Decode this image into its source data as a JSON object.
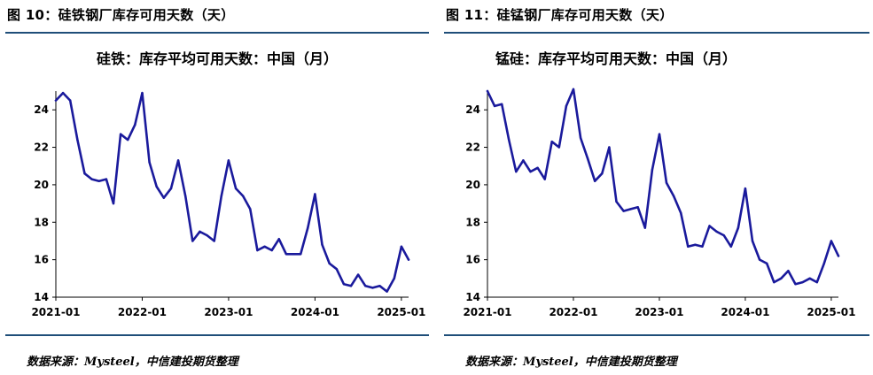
{
  "panels": [
    {
      "figure_title": "图 10：硅铁钢厂库存可用天数（天）",
      "source": "数据来源：Mysteel，中信建投期货整理"
    },
    {
      "figure_title": "图 11：硅锰钢厂库存可用天数（天）",
      "source": "数据来源：Mysteel，中信建投期货整理"
    }
  ],
  "chart_data": [
    {
      "type": "line",
      "title": "硅铁：库存平均可用天数：中国（月）",
      "xlabel": "",
      "ylabel": "",
      "ylim": [
        14,
        25
      ],
      "yticks": [
        14,
        16,
        18,
        20,
        22,
        24
      ],
      "xticks": [
        "2021-01",
        "2022-01",
        "2023-01",
        "2024-01",
        "2025-01"
      ],
      "xrange": [
        "2021-01",
        "2025-02"
      ],
      "grid": false,
      "line_color": "#1a1a9c",
      "series": [
        {
          "x": [
            "2021-01",
            "2021-02",
            "2021-03",
            "2021-04",
            "2021-05",
            "2021-06",
            "2021-07",
            "2021-08",
            "2021-09",
            "2021-10",
            "2021-11",
            "2021-12",
            "2022-01",
            "2022-02",
            "2022-03",
            "2022-04",
            "2022-05",
            "2022-06",
            "2022-07",
            "2022-08",
            "2022-09",
            "2022-10",
            "2022-11",
            "2022-12",
            "2023-01",
            "2023-02",
            "2023-03",
            "2023-04",
            "2023-05",
            "2023-06",
            "2023-07",
            "2023-08",
            "2023-09",
            "2023-10",
            "2023-11",
            "2023-12",
            "2024-01",
            "2024-02",
            "2024-03",
            "2024-04",
            "2024-05",
            "2024-06",
            "2024-07",
            "2024-08",
            "2024-09",
            "2024-10",
            "2024-11",
            "2024-12",
            "2025-01",
            "2025-02"
          ],
          "values": [
            24.5,
            24.9,
            24.5,
            22.4,
            20.6,
            20.3,
            20.2,
            20.3,
            19.0,
            22.7,
            22.4,
            23.2,
            24.9,
            21.2,
            19.9,
            19.3,
            19.8,
            21.3,
            19.4,
            17.0,
            17.5,
            17.3,
            17.0,
            19.4,
            21.3,
            19.8,
            19.4,
            18.7,
            16.5,
            16.7,
            16.5,
            17.1,
            16.3,
            16.3,
            16.3,
            17.7,
            19.5,
            16.8,
            15.8,
            15.5,
            14.7,
            14.6,
            15.2,
            14.6,
            14.5,
            14.6,
            14.3,
            15.0,
            16.7,
            16.0
          ]
        }
      ]
    },
    {
      "type": "line",
      "title": "锰硅：库存平均可用天数：中国（月）",
      "xlabel": "",
      "ylabel": "",
      "ylim": [
        14,
        25
      ],
      "yticks": [
        14,
        16,
        18,
        20,
        22,
        24
      ],
      "xticks": [
        "2021-01",
        "2022-01",
        "2023-01",
        "2024-01",
        "2025-01"
      ],
      "xrange": [
        "2021-01",
        "2025-02"
      ],
      "grid": false,
      "line_color": "#1a1a9c",
      "series": [
        {
          "x": [
            "2021-01",
            "2021-02",
            "2021-03",
            "2021-04",
            "2021-05",
            "2021-06",
            "2021-07",
            "2021-08",
            "2021-09",
            "2021-10",
            "2021-11",
            "2021-12",
            "2022-01",
            "2022-02",
            "2022-03",
            "2022-04",
            "2022-05",
            "2022-06",
            "2022-07",
            "2022-08",
            "2022-09",
            "2022-10",
            "2022-11",
            "2022-12",
            "2023-01",
            "2023-02",
            "2023-03",
            "2023-04",
            "2023-05",
            "2023-06",
            "2023-07",
            "2023-08",
            "2023-09",
            "2023-10",
            "2023-11",
            "2023-12",
            "2024-01",
            "2024-02",
            "2024-03",
            "2024-04",
            "2024-05",
            "2024-06",
            "2024-07",
            "2024-08",
            "2024-09",
            "2024-10",
            "2024-11",
            "2024-12",
            "2025-01",
            "2025-02"
          ],
          "values": [
            25.0,
            24.2,
            24.3,
            22.4,
            20.7,
            21.3,
            20.7,
            20.9,
            20.3,
            22.3,
            22.0,
            24.2,
            25.1,
            22.5,
            21.4,
            20.2,
            20.6,
            22.0,
            19.1,
            18.6,
            18.7,
            18.8,
            17.7,
            20.8,
            22.7,
            20.1,
            19.4,
            18.5,
            16.7,
            16.8,
            16.7,
            17.8,
            17.5,
            17.3,
            16.7,
            17.7,
            19.8,
            17.0,
            16.0,
            15.8,
            14.8,
            15.0,
            15.4,
            14.7,
            14.8,
            15.0,
            14.8,
            15.8,
            17.0,
            16.2
          ]
        }
      ]
    }
  ]
}
